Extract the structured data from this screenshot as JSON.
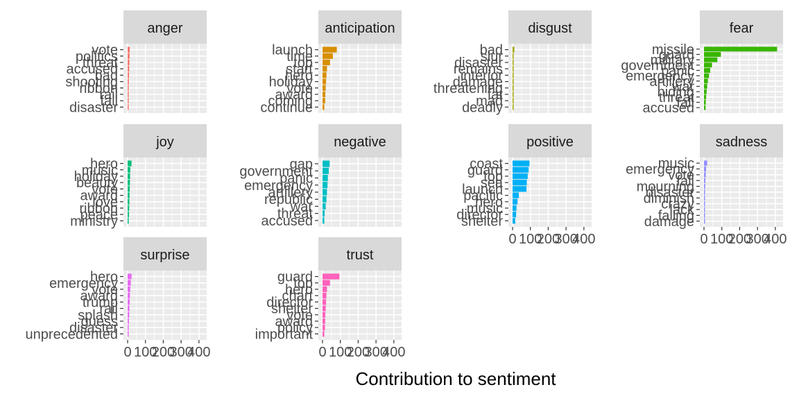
{
  "chart_data": {
    "type": "bar",
    "orientation": "horizontal",
    "xlabel": "Contribution to sentiment",
    "ylabel": "",
    "xlim": [
      0,
      420
    ],
    "x_ticks": [
      "0",
      "100",
      "200",
      "300",
      "400"
    ],
    "x_tick_values": [
      0,
      100,
      200,
      300,
      400
    ],
    "grid": true,
    "facets": [
      {
        "name": "anger",
        "color": "#F8766D",
        "categories": [
          "vote",
          "politics",
          "threat",
          "accused",
          "bad",
          "shooting",
          "ribbon",
          "rail",
          "fall",
          "disaster"
        ],
        "values": [
          12,
          11,
          10,
          9,
          8,
          7,
          6,
          6,
          5,
          5
        ]
      },
      {
        "name": "anticipation",
        "color": "#D89000",
        "categories": [
          "launch",
          "time",
          "top",
          "start",
          "hero",
          "holiday",
          "vote",
          "award",
          "coming",
          "continue"
        ],
        "values": [
          80,
          58,
          42,
          25,
          22,
          20,
          18,
          16,
          15,
          10
        ]
      },
      {
        "name": "disgust",
        "color": "#A3A500",
        "categories": [
          "bad",
          "slur",
          "disaster",
          "remains",
          "interior",
          "damage",
          "threatening",
          "fat",
          "mad",
          "deadly"
        ],
        "values": [
          10,
          5,
          5,
          4,
          4,
          3,
          3,
          3,
          2,
          2
        ]
      },
      {
        "name": "fear",
        "color": "#39B600",
        "categories": [
          "missile",
          "guard",
          "military",
          "government",
          "panic",
          "emergency",
          "artillery",
          "war",
          "hiding",
          "threat",
          "fall",
          "accused"
        ],
        "values": [
          410,
          95,
          75,
          45,
          35,
          28,
          22,
          18,
          15,
          12,
          10,
          9
        ]
      },
      {
        "name": "joy",
        "color": "#00BF7D",
        "categories": [
          "hero",
          "music",
          "holiday",
          "beauty",
          "vote",
          "award",
          "love",
          "ribbon",
          "peace",
          "ministry"
        ],
        "values": [
          22,
          15,
          14,
          13,
          12,
          11,
          10,
          9,
          8,
          6
        ]
      },
      {
        "name": "negative",
        "color": "#00BFC4",
        "categories": [
          "gap",
          "government",
          "panic",
          "emergency",
          "artillery",
          "republic",
          "war",
          "threat",
          "accused"
        ],
        "values": [
          40,
          35,
          30,
          28,
          25,
          22,
          18,
          12,
          10
        ]
      },
      {
        "name": "positive",
        "color": "#00B0F6",
        "categories": [
          "coast",
          "guard",
          "top",
          "sea",
          "launch",
          "pacific",
          "hero",
          "music",
          "director",
          "shelter"
        ],
        "values": [
          95,
          90,
          85,
          80,
          78,
          35,
          28,
          22,
          20,
          15
        ]
      },
      {
        "name": "sadness",
        "color": "#9590FF",
        "categories": [
          "music",
          "emergency",
          "vote",
          "fall",
          "mourning",
          "disaster",
          "diminish",
          "crazy",
          "lack",
          "falling",
          "damage"
        ],
        "values": [
          18,
          12,
          10,
          8,
          7,
          6,
          5,
          5,
          4,
          4,
          3
        ]
      },
      {
        "name": "surprise",
        "color": "#E76BF3",
        "categories": [
          "hero",
          "emergency",
          "vote",
          "award",
          "trump",
          "rail",
          "splash",
          "guess",
          "disaster",
          "unprecedented"
        ],
        "values": [
          22,
          18,
          15,
          13,
          12,
          10,
          9,
          7,
          5,
          3
        ]
      },
      {
        "name": "trust",
        "color": "#FF62BC",
        "categories": [
          "guard",
          "top",
          "hero",
          "chart",
          "director",
          "shelter",
          "vote",
          "award",
          "policy",
          "important"
        ],
        "values": [
          95,
          42,
          25,
          22,
          20,
          18,
          16,
          15,
          14,
          10
        ]
      }
    ]
  }
}
